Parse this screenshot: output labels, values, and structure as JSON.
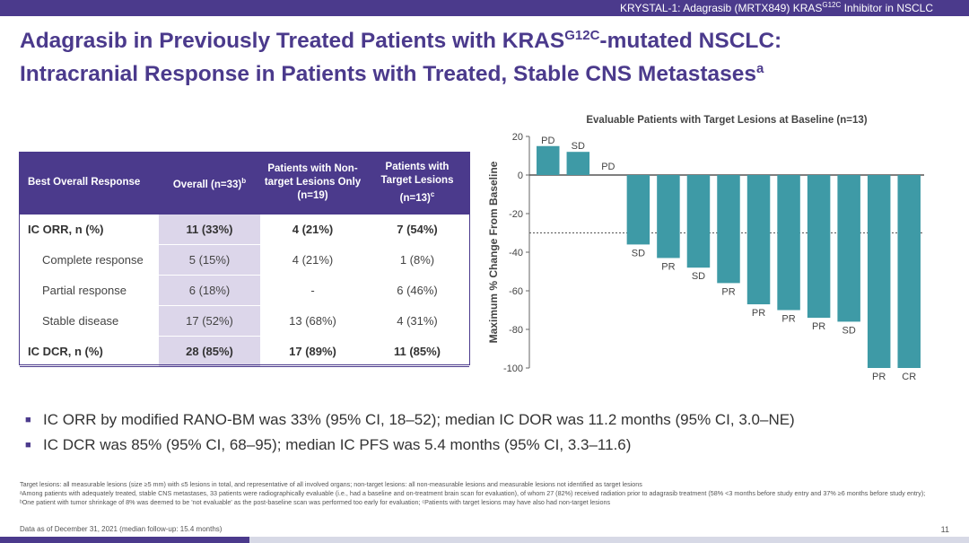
{
  "banner": {
    "prefix": "KRYSTAL-1: Adagrasib (MRTX849) KRAS",
    "sup": "G12C",
    "suffix": " Inhibitor in NSCLC"
  },
  "title": {
    "line1_pre": "Adagrasib in Previously Treated Patients with KRAS",
    "line1_sup": "G12C",
    "line1_post": "-mutated NSCLC:",
    "line2_pre": "Intracranial Response in Patients with Treated, Stable CNS Metastases",
    "line2_sup": "a"
  },
  "table": {
    "headers": [
      {
        "text": "Best Overall Response",
        "sup": ""
      },
      {
        "text": "Overall (n=33)",
        "sup": "b"
      },
      {
        "text": "Patients with Non-target Lesions Only (n=19)",
        "sup": ""
      },
      {
        "text": "Patients with Target Lesions (n=13)",
        "sup": "c"
      }
    ],
    "rows": [
      {
        "label": "IC ORR, n (%)",
        "overall": "11 (33%)",
        "nontarget": "4 (21%)",
        "target": "7 (54%)"
      },
      {
        "label": "Complete response",
        "overall": "5 (15%)",
        "nontarget": "4 (21%)",
        "target": "1 (8%)"
      },
      {
        "label": "Partial response",
        "overall": "6 (18%)",
        "nontarget": "-",
        "target": "6 (46%)"
      },
      {
        "label": "Stable disease",
        "overall": "17 (52%)",
        "nontarget": "13 (68%)",
        "target": "4 (31%)"
      },
      {
        "label": "IC DCR, n (%)",
        "overall": "28 (85%)",
        "nontarget": "17 (89%)",
        "target": "11 (85%)"
      }
    ]
  },
  "chart_data": {
    "type": "bar",
    "title": "Evaluable Patients with Target Lesions at Baseline (n=13)",
    "ylabel": "Maximum % Change From Baseline",
    "xlabel": "",
    "ylim": [
      -100,
      20
    ],
    "yticks": [
      20,
      0,
      -20,
      -40,
      -60,
      -80,
      -100
    ],
    "reference_line_y": -30,
    "bar_color": "#3e9aa6",
    "values": [
      15,
      12,
      0,
      -36,
      -43,
      -48,
      -56,
      -67,
      -70,
      -74,
      -76,
      -100,
      -100
    ],
    "labels": [
      "PD",
      "SD",
      "PD",
      "SD",
      "PR",
      "SD",
      "PR",
      "PR",
      "PR",
      "PR",
      "SD",
      "PR",
      "CR"
    ]
  },
  "bullets": [
    "IC ORR by modified RANO-BM was 33% (95% CI, 18–52); median IC DOR was 11.2 months (95% CI, 3.0–NE)",
    "IC DCR was 85% (95% CI, 68–95); median IC PFS was 5.4 months (95% CI, 3.3–11.6)"
  ],
  "footnotes": [
    "Target lesions: all measurable lesions (size ≥5 mm) with ≤5 lesions in total, and representative of all involved organs; non-target lesions: all non-measurable lesions and measurable lesions not identified as target lesions",
    "ᵃAmong patients with adequately treated, stable CNS metastases, 33 patients were radiographically evaluable (i.e., had a baseline and on-treatment brain scan for evaluation), of whom 27 (82%) received radiation prior to adagrasib treatment (58% <3 months before study entry and 37% ≥6 months before study entry); ᵇOne patient with tumor shrinkage of 8% was deemed to be 'not evaluable' as the post-baseline scan was performed too early for evaluation; ᶜPatients with target lesions may have also had non-target lesions"
  ],
  "data_as_of": "Data as of December 31, 2021 (median follow-up: 15.4 months)",
  "page_number": "11",
  "bullet_glyph": "■"
}
